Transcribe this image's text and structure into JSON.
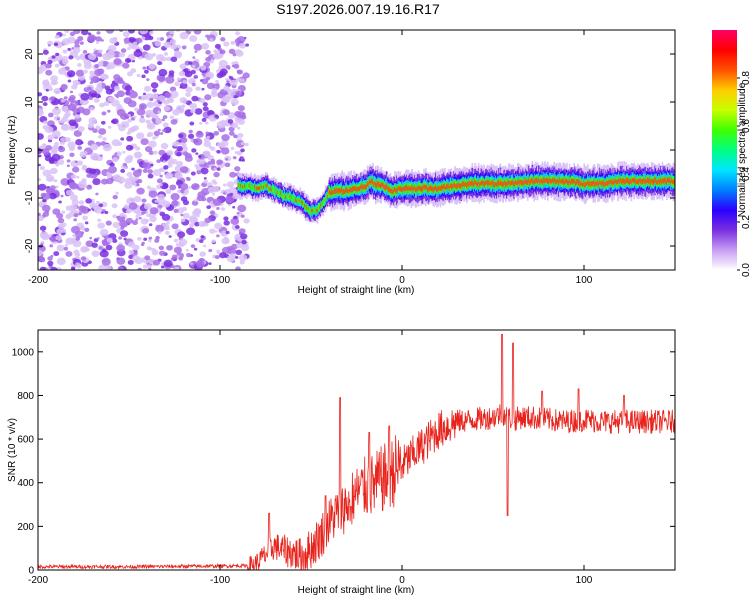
{
  "title": "S197.2026.007.19.16.R17",
  "colors": {
    "spectrogram_points": "#7b2fd6",
    "snr_line": "#e8231c",
    "axes": "#000000"
  },
  "chart_data": [
    {
      "type": "heatmap",
      "title": "S197.2026.007.19.16.R17",
      "xlabel": "Height of straight line (km)",
      "ylabel": "Frequency (Hz)",
      "xlim": [
        -200,
        150
      ],
      "ylim": [
        -25,
        25
      ],
      "xticks": [
        -200,
        -100,
        0,
        100
      ],
      "xtick_labels": [
        "-200",
        "-100",
        "0",
        "100"
      ],
      "yticks": [
        -20,
        -10,
        0,
        10,
        20
      ],
      "ytick_labels": [
        "-20",
        "-10",
        "0",
        "10",
        "20"
      ],
      "noise_region_x": [
        -200,
        -85
      ],
      "ridge": {
        "x": [
          -90,
          -85,
          -80,
          -75,
          -70,
          -65,
          -60,
          -55,
          -50,
          -45,
          -40,
          -35,
          -30,
          -25,
          -20,
          -17,
          -15,
          -10,
          -5,
          0,
          10,
          20,
          30,
          40,
          50,
          60,
          70,
          80,
          90,
          100,
          110,
          120,
          130,
          140,
          150
        ],
        "freq_hz": [
          -7.5,
          -7.5,
          -8,
          -7.5,
          -8.5,
          -9.5,
          -10,
          -11,
          -13,
          -12,
          -9,
          -8.5,
          -8.5,
          -8,
          -7.5,
          -6.5,
          -7,
          -7.5,
          -8.5,
          -8,
          -8,
          -8,
          -7.5,
          -7,
          -7,
          -7,
          -6.5,
          -6.5,
          -6.5,
          -7,
          -7,
          -6.5,
          -6.5,
          -6.5,
          -6.5
        ]
      },
      "colorbar": {
        "label": "Normalized spectral amplitude",
        "range": [
          0,
          1
        ],
        "ticks": [
          0,
          0.2,
          0.4,
          0.6,
          0.8
        ],
        "tick_labels": [
          "0.0",
          "0.2",
          "0.4",
          "0.6",
          "0.8"
        ],
        "stops": [
          "#ffffff",
          "#c79df3",
          "#7a2ee0",
          "#2a00ff",
          "#0080ff",
          "#00e5ff",
          "#00ff80",
          "#40ff00",
          "#c8ff00",
          "#ffcc00",
          "#ff5000",
          "#ff0000",
          "#ff0066"
        ]
      }
    },
    {
      "type": "line",
      "xlabel": "Height of straight line (km)",
      "ylabel": "SNR (10 * v/v)",
      "xlim": [
        -200,
        150
      ],
      "ylim": [
        0,
        1100
      ],
      "xticks": [
        -200,
        -100,
        0,
        100
      ],
      "xtick_labels": [
        "-200",
        "-100",
        "0",
        "100"
      ],
      "yticks": [
        0,
        200,
        400,
        600,
        800,
        1000
      ],
      "ytick_labels": [
        "0",
        "200",
        "400",
        "600",
        "800",
        "1000"
      ],
      "series": [
        {
          "name": "SNR",
          "x": [
            -200,
            -150,
            -100,
            -85,
            -80,
            -75,
            -70,
            -65,
            -60,
            -55,
            -50,
            -45,
            -40,
            -35,
            -30,
            -25,
            -20,
            -15,
            -10,
            -5,
            0,
            5,
            10,
            15,
            20,
            30,
            40,
            50,
            55,
            58,
            62,
            65,
            70,
            80,
            90,
            100,
            110,
            120,
            130,
            140,
            150
          ],
          "baseline": [
            15,
            15,
            18,
            20,
            30,
            70,
            110,
            90,
            80,
            60,
            100,
            150,
            220,
            270,
            300,
            350,
            380,
            390,
            420,
            450,
            480,
            520,
            560,
            600,
            640,
            680,
            690,
            700,
            720,
            700,
            690,
            700,
            700,
            690,
            680,
            690,
            680,
            680,
            680,
            680,
            680
          ],
          "spikes": [
            {
              "x": -73,
              "y": 260
            },
            {
              "x": -42,
              "y": 340
            },
            {
              "x": -34,
              "y": 790
            },
            {
              "x": -28,
              "y": 290
            },
            {
              "x": -18,
              "y": 630
            },
            {
              "x": -7,
              "y": 660
            },
            {
              "x": 55,
              "y": 1080
            },
            {
              "x": 58,
              "y": 250
            },
            {
              "x": 61,
              "y": 1040
            },
            {
              "x": 77,
              "y": 820
            },
            {
              "x": 97,
              "y": 830
            },
            {
              "x": 122,
              "y": 800
            }
          ]
        }
      ]
    }
  ]
}
